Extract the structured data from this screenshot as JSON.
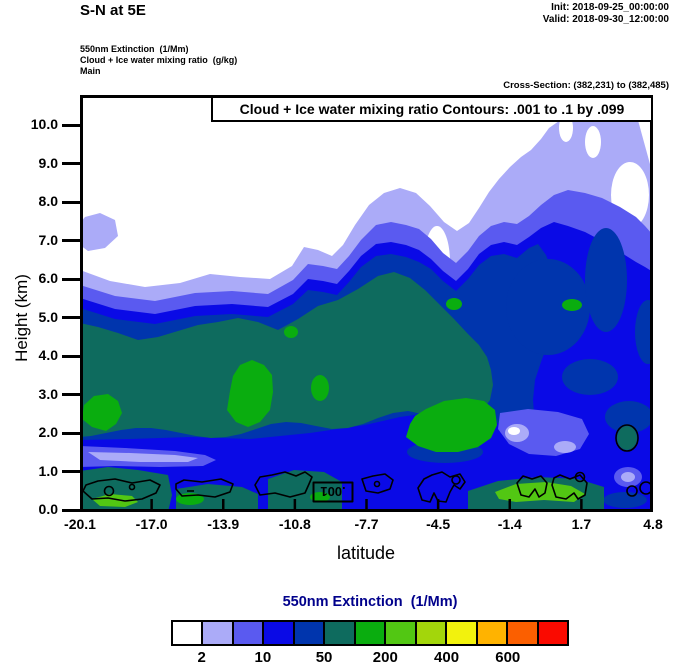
{
  "header": {
    "title": "S-N at 5E",
    "init_label": "Init: 2018-09-25_00:00:00",
    "valid_label": "Valid: 2018-09-30_12:00:00",
    "field_lines": [
      "550nm Extinction  (1/Mm)",
      "Cloud + Ice water mixing ratio  (g/kg)",
      "Main"
    ],
    "cross_section": "Cross-Section: (382,231) to (382,485)"
  },
  "plot": {
    "contour_box_title": "Cloud + Ice water mixing ratio Contours: .001 to .1 by .099",
    "xlabel": "latitude",
    "ylabel": "Height (km)",
    "contour_inline_label": ".001"
  },
  "colorbar": {
    "title": "550nm Extinction  (1/Mm)",
    "colors": [
      "#FFFFFF",
      "#ABABF8",
      "#5A5AF0",
      "#0A0AE6",
      "#0035AD",
      "#0E6B5E",
      "#0AAD0F",
      "#52C713",
      "#A3D60B",
      "#F2F20D",
      "#FFB300",
      "#FB5F00",
      "#FA0A00"
    ],
    "tick_labels": [
      "2",
      "10",
      "50",
      "200",
      "400",
      "600"
    ],
    "label_boundary_indices": [
      1,
      3,
      5,
      7,
      9,
      11
    ]
  },
  "palette": {
    "white": "#FFFFFF",
    "lavender": "#ABABF8",
    "violet": "#5A5AF0",
    "blue": "#0A0AE6",
    "navy": "#0035AD",
    "teal": "#0E6B5E",
    "green": "#0AAD0F",
    "lightgreen": "#52C713",
    "black": "#000000"
  },
  "chart_data": {
    "type": "heatmap",
    "subtype": "filled-contour-cross-section",
    "title": "Cloud + Ice water mixing ratio Contours: .001 to .1 by .099",
    "xlabel": "latitude",
    "ylabel": "Height (km)",
    "x_tick_labels": [
      "-20.1",
      "-17.0",
      "-13.9",
      "-10.8",
      "-7.7",
      "-4.5",
      "-1.4",
      "1.7",
      "4.8"
    ],
    "y_tick_labels": [
      "0.0",
      "1.0",
      "2.0",
      "3.0",
      "4.0",
      "5.0",
      "6.0",
      "7.0",
      "8.0",
      "9.0",
      "10.0"
    ],
    "xlim": [
      -20.1,
      4.8
    ],
    "ylim": [
      0,
      10.8
    ],
    "grid": false,
    "shaded_field": {
      "name": "550nm Extinction",
      "units": "1/Mm",
      "labeled_levels": [
        2,
        10,
        50,
        200,
        400,
        600
      ],
      "palette": [
        "#FFFFFF",
        "#ABABF8",
        "#5A5AF0",
        "#0A0AE6",
        "#0035AD",
        "#0E6B5E",
        "#0AAD0F",
        "#52C713",
        "#A3D60B",
        "#F2F20D",
        "#FFB300",
        "#FB5F00",
        "#FA0A00"
      ],
      "colors_present_in_section": [
        "#FFFFFF",
        "#ABABF8",
        "#5A5AF0",
        "#0A0AE6",
        "#0035AD",
        "#0E6B5E",
        "#0AAD0F",
        "#52C713"
      ]
    },
    "overlay_contours": {
      "name": "Cloud + Ice water mixing ratio",
      "units": "g/kg",
      "levels": [
        0.001,
        0.1
      ],
      "inline_label": ".001",
      "location": "scattered closed contours below ~1.2 km"
    },
    "approx_aerosol_cloud_top_km": {
      "x": [
        -20.1,
        -17.0,
        -13.9,
        -10.8,
        -7.7,
        -4.5,
        -1.4,
        1.7,
        4.8
      ],
      "values": [
        6.2,
        5.9,
        6.1,
        7.4,
        8.1,
        8.3,
        9.0,
        9.9,
        10.4
      ]
    }
  }
}
